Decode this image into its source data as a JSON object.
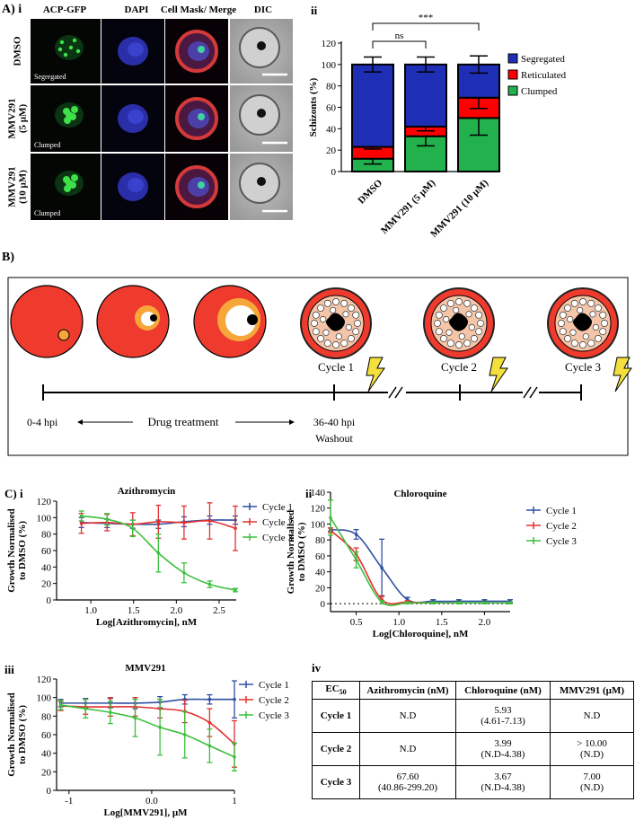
{
  "panelA": {
    "label": "A) i",
    "columns": [
      "ACP-GFP",
      "DAPI",
      "Cell Mask/ Merge",
      "DIC"
    ],
    "rows": [
      {
        "label_lines": [
          "DMSO"
        ],
        "tag": "Segregated"
      },
      {
        "label_lines": [
          "MMV291",
          "(5 µM)"
        ],
        "tag": "Clumped"
      },
      {
        "label_lines": [
          "MMV291",
          "(10 µM)"
        ],
        "tag": "Clumped"
      }
    ]
  },
  "chart_data": [
    {
      "id": "A-ii",
      "panel_label": "ii",
      "type": "bar",
      "stacked": true,
      "categories": [
        "DMSO",
        "MMV291 (5 µM)",
        "MMV291 (10 µM)"
      ],
      "ylabel": "Schizonts (%)",
      "ylim": [
        0,
        120
      ],
      "yticks": [
        0,
        20,
        40,
        60,
        80,
        100,
        120
      ],
      "series": [
        {
          "name": "Clumped",
          "color": "#22b14c",
          "values": [
            12,
            33,
            50
          ],
          "errors": [
            5,
            9,
            16
          ]
        },
        {
          "name": "Reticulated",
          "color": "#ff0000",
          "values": [
            11,
            9,
            19
          ],
          "errors": [
            2,
            4,
            10
          ]
        },
        {
          "name": "Segregated",
          "color": "#1f2fb5",
          "values": [
            77,
            58,
            31
          ],
          "errors": [
            7,
            7,
            8
          ]
        }
      ],
      "significance": [
        {
          "label": "ns",
          "from": 0,
          "to": 1
        },
        {
          "label": "***",
          "from": 0,
          "to": 2
        }
      ],
      "legend_position": "right"
    },
    {
      "id": "C-i",
      "panel_label": "C) i",
      "type": "line",
      "title": "Azithromycin",
      "xlabel": "Log[Azithromycin], nM",
      "ylabel_lines": [
        "Growth Normalised",
        "to DMSO (%)"
      ],
      "xlim": [
        0.6,
        2.7
      ],
      "ylim": [
        0,
        120
      ],
      "xticks": [
        1.0,
        1.5,
        2.0,
        2.5
      ],
      "yticks": [
        0,
        20,
        40,
        60,
        80,
        100,
        120
      ],
      "legend_position": "right",
      "series": [
        {
          "name": "Cycle 1",
          "color": "#2f4fa2",
          "points": [
            [
              0.89,
              94
            ],
            [
              1.19,
              93
            ],
            [
              1.49,
              92
            ],
            [
              1.79,
              92
            ],
            [
              2.09,
              95
            ],
            [
              2.39,
              97
            ],
            [
              2.69,
              97
            ]
          ],
          "errors": [
            6,
            5,
            5,
            5,
            6,
            5,
            5
          ]
        },
        {
          "name": "Cycle 2",
          "color": "#e3302e",
          "points": [
            [
              0.89,
              93
            ],
            [
              1.19,
              94
            ],
            [
              1.49,
              92
            ],
            [
              1.79,
              95
            ],
            [
              2.09,
              94
            ],
            [
              2.39,
              96
            ],
            [
              2.69,
              87
            ]
          ],
          "errors": [
            12,
            10,
            14,
            20,
            20,
            22,
            27
          ]
        },
        {
          "name": "Cycle 3",
          "color": "#3cbf3c",
          "points": [
            [
              0.89,
              102
            ],
            [
              1.19,
              98
            ],
            [
              1.49,
              87
            ],
            [
              1.79,
              57
            ],
            [
              2.09,
              33
            ],
            [
              2.39,
              19
            ],
            [
              2.69,
              12
            ]
          ],
          "errors": [
            6,
            7,
            10,
            23,
            12,
            4,
            2
          ]
        }
      ]
    },
    {
      "id": "C-ii",
      "panel_label": "ii",
      "type": "line",
      "title": "Chloroquine",
      "xlabel": "Log[Chloroquine], nM",
      "ylabel_lines": [
        "Growth Normalised",
        "to DMSO (%)"
      ],
      "xlim": [
        0.2,
        2.3
      ],
      "ylim": [
        -10,
        140
      ],
      "xticks": [
        0.5,
        1.0,
        1.5,
        2.0
      ],
      "yticks": [
        0,
        20,
        40,
        60,
        80,
        100,
        120,
        140
      ],
      "baseline": 0,
      "legend_position": "right",
      "series": [
        {
          "name": "Cycle 1",
          "color": "#2f4fa2",
          "points": [
            [
              0.2,
              93
            ],
            [
              0.5,
              87
            ],
            [
              0.8,
              45
            ],
            [
              1.1,
              5
            ],
            [
              1.4,
              3
            ],
            [
              1.7,
              3
            ],
            [
              2.0,
              3
            ],
            [
              2.3,
              3
            ]
          ],
          "errors": [
            2,
            6,
            36,
            3,
            2,
            2,
            2,
            2
          ]
        },
        {
          "name": "Cycle 2",
          "color": "#e3302e",
          "points": [
            [
              0.2,
              92
            ],
            [
              0.5,
              62
            ],
            [
              0.8,
              5
            ],
            [
              1.1,
              2
            ],
            [
              1.4,
              1
            ],
            [
              1.7,
              1
            ],
            [
              2.0,
              1
            ],
            [
              2.3,
              1
            ]
          ],
          "errors": [
            3,
            8,
            5,
            2,
            1,
            1,
            1,
            1
          ]
        },
        {
          "name": "Cycle 3",
          "color": "#3cbf3c",
          "points": [
            [
              0.2,
              108
            ],
            [
              0.5,
              55
            ],
            [
              0.8,
              2
            ],
            [
              1.1,
              1
            ],
            [
              1.4,
              1
            ],
            [
              1.7,
              1
            ],
            [
              2.0,
              1
            ],
            [
              2.3,
              1
            ]
          ],
          "errors": [
            22,
            10,
            2,
            1,
            1,
            1,
            1,
            1
          ]
        }
      ]
    },
    {
      "id": "C-iii",
      "panel_label": "iii",
      "type": "line",
      "title": "MMV291",
      "xlabel": "Log[MMV291], µM",
      "ylabel_lines": [
        "Growth Normalised",
        "to DMSO (%)"
      ],
      "xlim": [
        -1.15,
        1.0
      ],
      "ylim": [
        0,
        120
      ],
      "xticks": [
        -1,
        0,
        1
      ],
      "yticks": [
        0,
        20,
        40,
        60,
        80,
        100,
        120
      ],
      "legend_position": "right",
      "series": [
        {
          "name": "Cycle 1",
          "color": "#2f4fa2",
          "points": [
            [
              -1.1,
              94
            ],
            [
              -0.8,
              94
            ],
            [
              -0.5,
              94
            ],
            [
              -0.2,
              94
            ],
            [
              0.1,
              95
            ],
            [
              0.4,
              98
            ],
            [
              0.7,
              98
            ],
            [
              1.0,
              98
            ]
          ],
          "errors": [
            4,
            5,
            5,
            6,
            6,
            5,
            5,
            20
          ]
        },
        {
          "name": "Cycle 2",
          "color": "#e3302e",
          "points": [
            [
              -1.1,
              91
            ],
            [
              -0.8,
              90
            ],
            [
              -0.5,
              90
            ],
            [
              -0.2,
              90
            ],
            [
              0.1,
              88
            ],
            [
              0.4,
              85
            ],
            [
              0.7,
              73
            ],
            [
              1.0,
              50
            ]
          ],
          "errors": [
            5,
            8,
            10,
            10,
            10,
            12,
            15,
            25
          ]
        },
        {
          "name": "Cycle 3",
          "color": "#3cbf3c",
          "points": [
            [
              -1.1,
              92
            ],
            [
              -0.8,
              88
            ],
            [
              -0.5,
              84
            ],
            [
              -0.2,
              78
            ],
            [
              0.1,
              68
            ],
            [
              0.4,
              60
            ],
            [
              0.7,
              48
            ],
            [
              1.0,
              36
            ]
          ],
          "errors": [
            5,
            10,
            12,
            20,
            30,
            25,
            18,
            15
          ]
        }
      ]
    },
    {
      "id": "C-iv",
      "panel_label": "iv",
      "type": "table",
      "header": {
        "ec": "EC",
        "ec_sub": "50",
        "cols": [
          "Azithromycin (nM)",
          "Chloroquine (nM)",
          "MMV291 (µM)"
        ]
      },
      "rows": [
        {
          "name": "Cycle 1",
          "cells": [
            [
              "N.D"
            ],
            [
              "5.93",
              "(4.61-7.13)"
            ],
            [
              "N.D"
            ]
          ]
        },
        {
          "name": "Cycle 2",
          "cells": [
            [
              "N.D"
            ],
            [
              "3.99",
              "(N.D-4.38)"
            ],
            [
              "> 10.00",
              "(N.D)"
            ]
          ]
        },
        {
          "name": "Cycle 3",
          "cells": [
            [
              "67.60",
              "(40.86-299.20)"
            ],
            [
              "3.67",
              "(N.D-4.38)"
            ],
            [
              "7.00",
              "(N.D)"
            ]
          ]
        }
      ]
    }
  ],
  "panelB": {
    "label": "B)",
    "cycles": [
      "Cycle 1",
      "Cycle 2",
      "Cycle 3"
    ],
    "start_label": "0-4 hpi",
    "middle_label": "Drug treatment",
    "end_label": "36-40 hpi",
    "washout_label": "Washout",
    "colors": {
      "rbc": "#ee3b2e",
      "parasite": "#f7a73a",
      "vacuole": "#ffffff",
      "pigment": "#000000",
      "schizont_fill": "#f4c5a8"
    }
  },
  "panelC_label": "C)"
}
